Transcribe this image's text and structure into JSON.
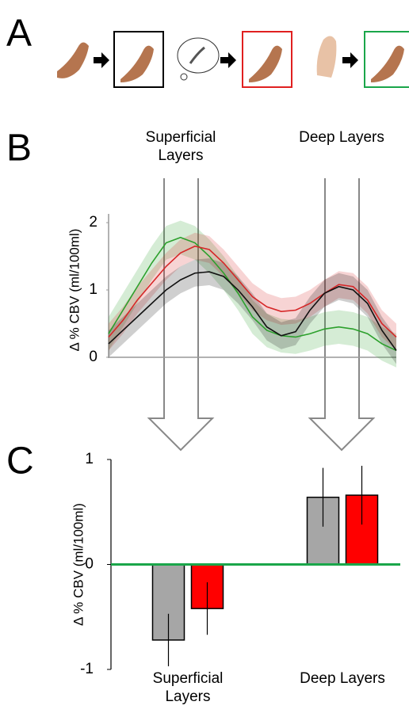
{
  "panel_labels": [
    "A",
    "B",
    "C"
  ],
  "chart_data": [
    {
      "type": "line",
      "ylabel": "Δ % CBV (ml/100ml)",
      "categories": [
        null,
        null,
        null,
        null,
        null,
        null,
        null,
        null,
        null,
        null,
        null,
        null,
        null,
        null,
        null,
        null,
        null,
        null,
        null,
        null,
        null
      ],
      "ylim": [
        -0.13,
        2.13
      ],
      "yticks": [
        0,
        1,
        2
      ],
      "annotations": [
        "Superficial Layers",
        "Deep Layers"
      ],
      "series": [
        {
          "color": "#2ca02c",
          "error": 0.25,
          "values": [
            0.35,
            0.7,
            1.05,
            1.4,
            1.7,
            1.78,
            1.7,
            1.5,
            1.25,
            0.95,
            0.6,
            0.4,
            0.32,
            0.3,
            0.35,
            0.42,
            0.45,
            0.42,
            0.35,
            0.2,
            0.1
          ]
        },
        {
          "color": "#d62728",
          "error": 0.2,
          "values": [
            0.3,
            0.55,
            0.85,
            1.1,
            1.35,
            1.55,
            1.65,
            1.6,
            1.4,
            1.15,
            0.9,
            0.75,
            0.68,
            0.7,
            0.8,
            0.95,
            1.08,
            1.05,
            0.85,
            0.5,
            0.3
          ]
        },
        {
          "color": "#111111",
          "error": 0.2,
          "values": [
            0.2,
            0.4,
            0.6,
            0.8,
            1.0,
            1.15,
            1.25,
            1.27,
            1.2,
            1.0,
            0.75,
            0.45,
            0.32,
            0.38,
            0.7,
            0.95,
            1.05,
            1.0,
            0.8,
            0.4,
            0.1
          ]
        }
      ]
    },
    {
      "type": "bar",
      "ylabel": "Δ % CBV (ml/100ml)",
      "categories": [
        "Superficial Layers",
        "Deep Layers"
      ],
      "ylim": [
        -1,
        1
      ],
      "yticks": [
        -1,
        0,
        1
      ],
      "zero_line_color": "#1aa64a",
      "series": [
        {
          "color": "#a6a6a6",
          "values": [
            -0.72,
            0.64
          ],
          "errors": [
            0.25,
            0.28
          ]
        },
        {
          "color": "#ff0000",
          "values": [
            -0.42,
            0.66
          ],
          "errors": [
            0.25,
            0.28
          ]
        }
      ]
    }
  ]
}
